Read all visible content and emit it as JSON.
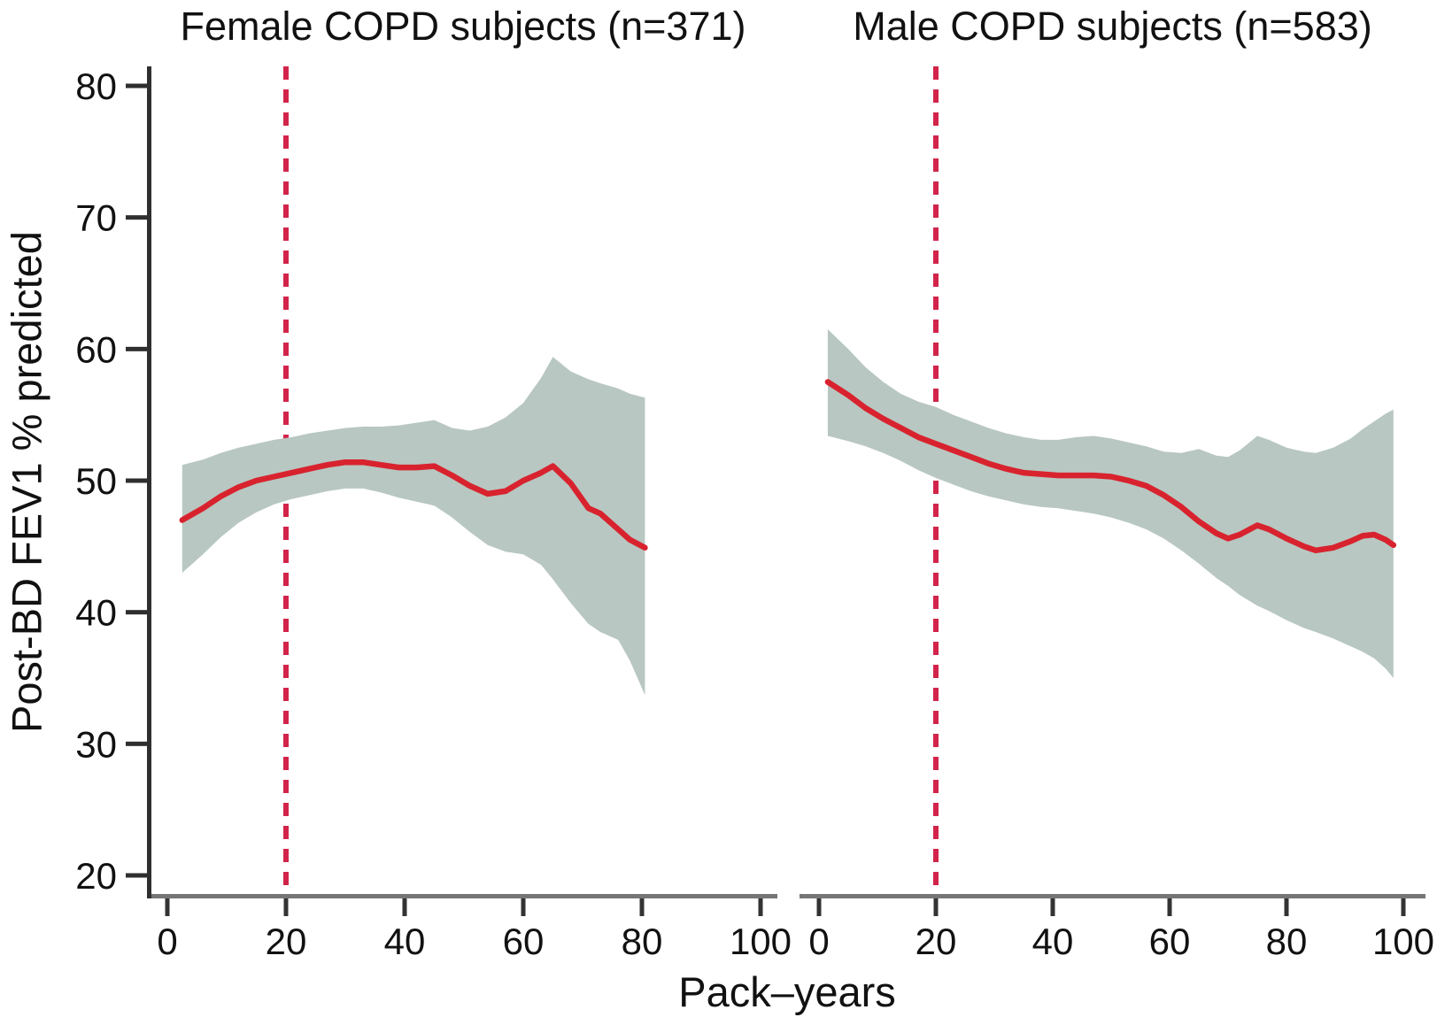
{
  "figure": {
    "y_axis_label": "Post-BD FEV1 % predicted",
    "x_axis_label": "Pack–years"
  },
  "colors": {
    "mean_line": "#d8232f",
    "reference_line": "#d2244a",
    "ci_band": "#b8c7c1",
    "x_axis_line": "#757575",
    "y_axis_line": "#2f2f2f",
    "tick": "#333333",
    "text": "#111111"
  },
  "chart_data": [
    {
      "type": "line",
      "title": "Female COPD subjects (n=371)",
      "xlabel": "Pack–years",
      "ylabel": "Post-BD FEV1 % predicted",
      "xlim": [
        0,
        100
      ],
      "ylim": [
        18.5,
        81.5
      ],
      "x_ticks": [
        0,
        20,
        40,
        60,
        80,
        100
      ],
      "y_ticks": [
        20,
        30,
        40,
        50,
        60,
        70,
        80
      ],
      "reference_line_x": 20,
      "grid": false,
      "legend": "none",
      "x": [
        2.5,
        6,
        9,
        12,
        15,
        18,
        21,
        24,
        27,
        30,
        33,
        36,
        39,
        42,
        45,
        48,
        51,
        54,
        57,
        60,
        63,
        65,
        68,
        71,
        73,
        76,
        78,
        80.5
      ],
      "series": [
        {
          "name": "smoothed mean Post-BD FEV1 % predicted",
          "values": [
            47.0,
            47.9,
            48.8,
            49.5,
            50.0,
            50.3,
            50.6,
            50.9,
            51.2,
            51.4,
            51.4,
            51.2,
            51.0,
            51.0,
            51.1,
            50.4,
            49.6,
            49.0,
            49.2,
            50.0,
            50.6,
            51.1,
            49.8,
            47.9,
            47.5,
            46.3,
            45.5,
            44.9
          ]
        },
        {
          "name": "95% CI lower",
          "values": [
            43.0,
            44.4,
            45.7,
            46.8,
            47.6,
            48.2,
            48.6,
            48.9,
            49.2,
            49.4,
            49.4,
            49.1,
            48.7,
            48.4,
            48.1,
            47.2,
            46.1,
            45.1,
            44.6,
            44.4,
            43.6,
            42.5,
            40.7,
            39.1,
            38.5,
            37.9,
            36.3,
            33.7
          ]
        },
        {
          "name": "95% CI upper",
          "values": [
            51.2,
            51.6,
            52.1,
            52.5,
            52.8,
            53.1,
            53.3,
            53.6,
            53.8,
            54.0,
            54.1,
            54.1,
            54.2,
            54.4,
            54.6,
            54.0,
            53.8,
            54.1,
            54.8,
            55.9,
            57.8,
            59.4,
            58.3,
            57.7,
            57.4,
            57.0,
            56.6,
            56.3
          ]
        }
      ]
    },
    {
      "type": "line",
      "title": "Male COPD subjects (n=583)",
      "xlabel": "Pack–years",
      "ylabel": "Post-BD FEV1 % predicted",
      "xlim": [
        0,
        100
      ],
      "ylim": [
        18.5,
        81.5
      ],
      "x_ticks": [
        0,
        20,
        40,
        60,
        80,
        100
      ],
      "y_ticks": [
        20,
        30,
        40,
        50,
        60,
        70,
        80
      ],
      "reference_line_x": 20,
      "grid": false,
      "legend": "none",
      "x": [
        1.5,
        5,
        8,
        11,
        14,
        17,
        20,
        23,
        26,
        29,
        32,
        35,
        38,
        41,
        44,
        47,
        50,
        53,
        56,
        59,
        62,
        65,
        68,
        70,
        72,
        75,
        77,
        80,
        83,
        85,
        88,
        91,
        93,
        95,
        97,
        98.3
      ],
      "series": [
        {
          "name": "smoothed mean Post-BD FEV1 % predicted",
          "values": [
            57.5,
            56.5,
            55.5,
            54.7,
            54.0,
            53.3,
            52.8,
            52.3,
            51.8,
            51.3,
            50.9,
            50.6,
            50.5,
            50.4,
            50.4,
            50.4,
            50.3,
            50.0,
            49.6,
            48.9,
            48.0,
            46.9,
            46.0,
            45.6,
            45.9,
            46.6,
            46.3,
            45.6,
            45.0,
            44.7,
            44.9,
            45.4,
            45.8,
            45.9,
            45.5,
            45.1
          ]
        },
        {
          "name": "95% CI lower",
          "values": [
            53.4,
            53.0,
            52.6,
            52.1,
            51.5,
            50.8,
            50.2,
            49.7,
            49.2,
            48.8,
            48.5,
            48.2,
            48.0,
            47.9,
            47.7,
            47.5,
            47.2,
            46.8,
            46.3,
            45.6,
            44.7,
            43.7,
            42.6,
            42.0,
            41.3,
            40.5,
            40.1,
            39.4,
            38.8,
            38.5,
            38.0,
            37.4,
            37.0,
            36.5,
            35.7,
            35.0
          ]
        },
        {
          "name": "95% CI upper",
          "values": [
            61.5,
            60.0,
            58.6,
            57.5,
            56.6,
            56.0,
            55.6,
            55.0,
            54.5,
            54.0,
            53.6,
            53.3,
            53.1,
            53.1,
            53.3,
            53.4,
            53.2,
            52.9,
            52.6,
            52.2,
            52.1,
            52.4,
            51.9,
            51.8,
            52.3,
            53.4,
            53.1,
            52.5,
            52.2,
            52.1,
            52.5,
            53.2,
            53.9,
            54.5,
            55.1,
            55.4
          ]
        }
      ]
    }
  ]
}
